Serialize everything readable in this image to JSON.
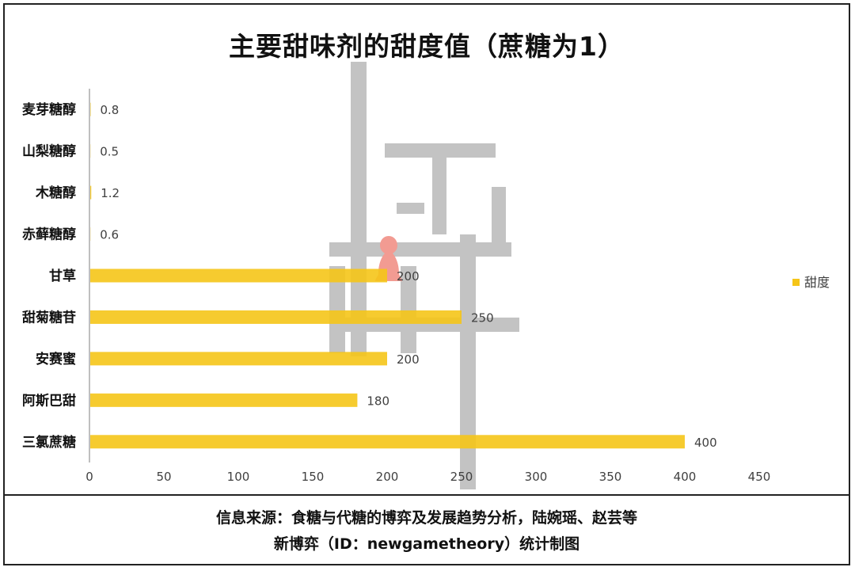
{
  "chart_data": {
    "type": "bar",
    "orientation": "horizontal",
    "title": "主要甜味剂的甜度值（蔗糖为1）",
    "categories": [
      "麦芽糖醇",
      "山梨糖醇",
      "木糖醇",
      "赤藓糖醇",
      "甘草",
      "甜菊糖苷",
      "安赛蜜",
      "阿斯巴甜",
      "三氯蔗糖"
    ],
    "series": [
      {
        "name": "甜度",
        "values": [
          0.8,
          0.5,
          1.2,
          0.6,
          200,
          250,
          200,
          180,
          400
        ],
        "value_labels": [
          "0.8",
          "0.5",
          "1.2",
          "0.6",
          "200",
          "250",
          "200",
          "180",
          "400"
        ]
      }
    ],
    "xlim": [
      0,
      450
    ],
    "xticks": [
      "0",
      "50",
      "100",
      "150",
      "200",
      "250",
      "300",
      "350",
      "400",
      "450"
    ],
    "grid": false,
    "legend_position": "right",
    "bar_color": "#F5C518"
  },
  "watermark": {
    "text_top": "新",
    "text_bottom": "博弈"
  },
  "source": {
    "line1": "信息来源：食糖与代糖的博弈及发展趋势分析，陆婉瑶、赵芸等",
    "line2": "新博弈（ID：newgametheory）统计制图"
  }
}
